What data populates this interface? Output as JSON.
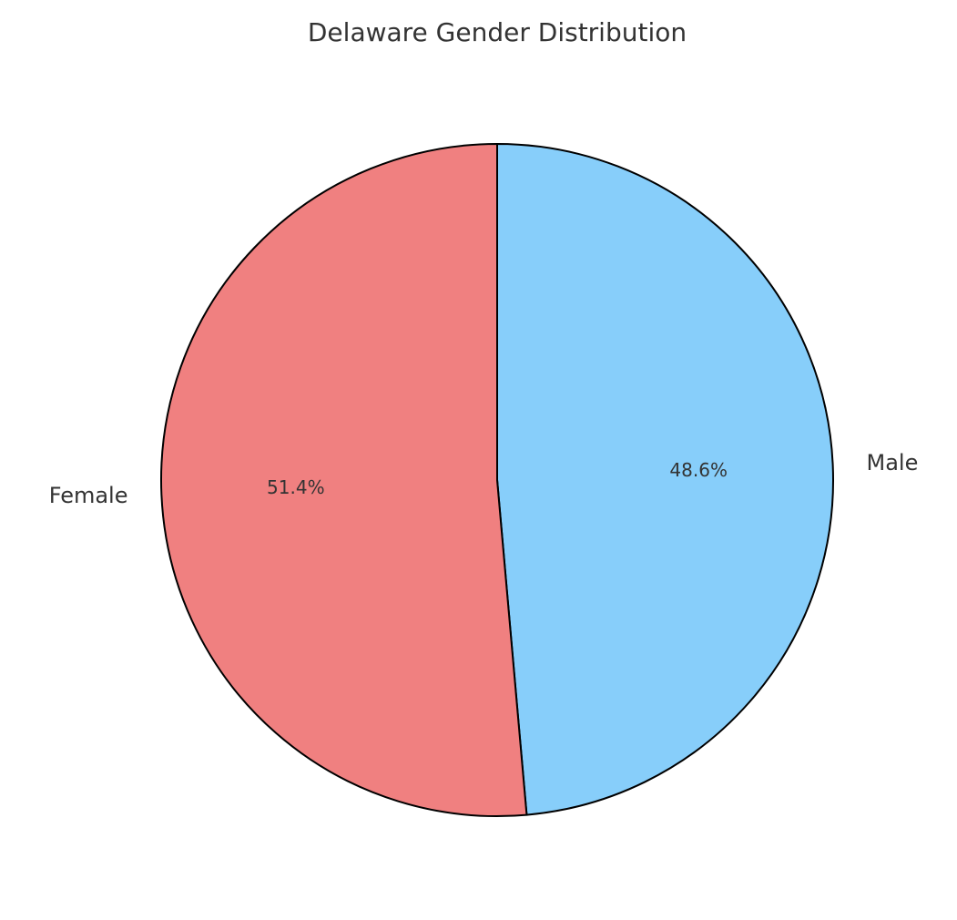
{
  "chart_data": {
    "type": "pie",
    "title": "Delaware Gender Distribution",
    "categories": [
      "Male",
      "Female"
    ],
    "values": [
      48.6,
      51.4
    ],
    "value_labels": [
      "48.6%",
      "51.4%"
    ],
    "colors": [
      "#87cefa",
      "#f08080"
    ]
  }
}
